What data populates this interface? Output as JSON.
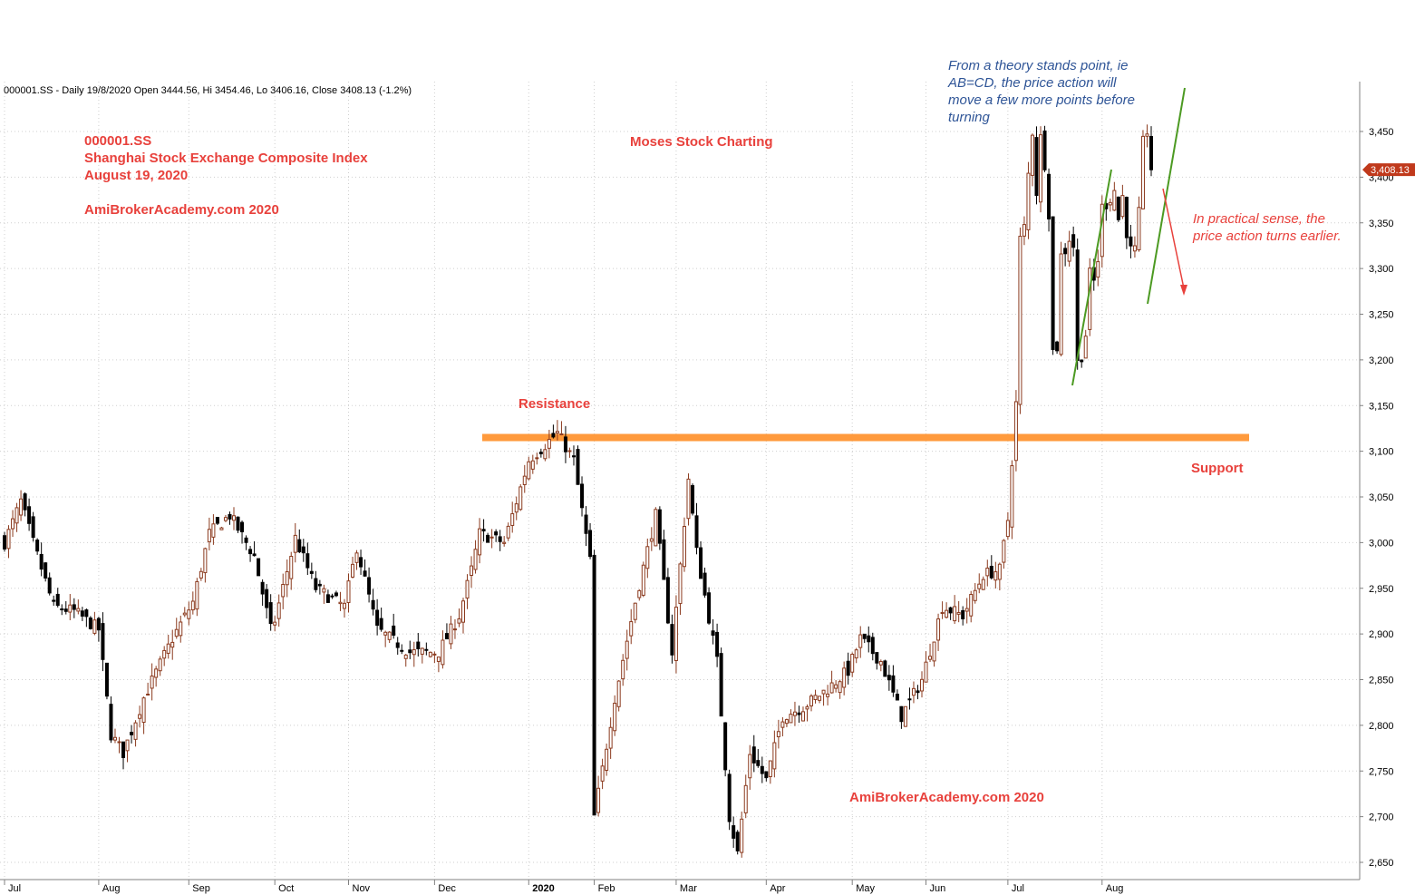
{
  "header": {
    "title": "000001.SS - Daily 19/8/2020 Open 3444.56, Hi 3454.46, Lo 3406.16, Close 3408.13 (-1.2%)"
  },
  "annotations": {
    "ticker": "000001.SS",
    "index_name": "Shanghai Stock Exchange Composite Index",
    "date": "August 19, 2020",
    "site_top": "AmiBrokerAcademy.com 2020",
    "brand": "Moses Stock Charting",
    "site_bottom": "AmiBrokerAcademy.com  2020",
    "resistance": "Resistance",
    "support": "Support",
    "theory_note": [
      "From a theory stands point, ie",
      "AB=CD, the price action will",
      "move a few more points before",
      "turning"
    ],
    "practical_note": [
      "In practical sense, the",
      "price action turns earlier."
    ]
  },
  "last_price_badge": "3,408.13",
  "colors": {
    "up_candle": "#8b3a1e",
    "down_candle": "#000000",
    "level_line": "#ff9a3c",
    "trend_green": "#4c9a22",
    "arrow_red": "#e8413c",
    "badge_fill": "#c0391b"
  },
  "chart_data": {
    "type": "candlestick",
    "y_ticks": [
      "3,450",
      "3,400",
      "3,350",
      "3,300",
      "3,250",
      "3,200",
      "3,150",
      "3,100",
      "3,050",
      "3,000",
      "2,950",
      "2,900",
      "2,850",
      "2,800",
      "2,750",
      "2,700",
      "2,650"
    ],
    "ylim": [
      2630,
      3470
    ],
    "x_ticks": [
      "Jul",
      "Aug",
      "Sep",
      "Oct",
      "Nov",
      "Dec",
      "2020",
      "Feb",
      "Mar",
      "Apr",
      "May",
      "Jun",
      "Jul",
      "Aug"
    ],
    "x_tick_dates": [
      "2019-07-01",
      "2019-08-01",
      "2019-09-02",
      "2019-10-08",
      "2019-11-01",
      "2019-12-02",
      "2020-01-02",
      "2020-02-03",
      "2020-03-02",
      "2020-04-01",
      "2020-05-06",
      "2020-06-01",
      "2020-07-01",
      "2020-08-03"
    ],
    "resistance_level": 3115,
    "support_level": 3115,
    "last_close": 3408.13,
    "anchors": [
      {
        "d": "2019-07-01",
        "c": 3000
      },
      {
        "d": "2019-07-05",
        "c": 3045
      },
      {
        "d": "2019-07-10",
        "c": 3000
      },
      {
        "d": "2019-07-17",
        "c": 2930
      },
      {
        "d": "2019-07-24",
        "c": 2925
      },
      {
        "d": "2019-08-01",
        "c": 2905
      },
      {
        "d": "2019-08-06",
        "c": 2790
      },
      {
        "d": "2019-08-09",
        "c": 2770
      },
      {
        "d": "2019-08-16",
        "c": 2830
      },
      {
        "d": "2019-08-27",
        "c": 2895
      },
      {
        "d": "2019-09-03",
        "c": 2935
      },
      {
        "d": "2019-09-09",
        "c": 3010
      },
      {
        "d": "2019-09-16",
        "c": 3030
      },
      {
        "d": "2019-09-24",
        "c": 2985
      },
      {
        "d": "2019-09-30",
        "c": 2905
      },
      {
        "d": "2019-10-08",
        "c": 2915
      },
      {
        "d": "2019-10-15",
        "c": 3005
      },
      {
        "d": "2019-10-22",
        "c": 2950
      },
      {
        "d": "2019-10-31",
        "c": 2930
      },
      {
        "d": "2019-11-05",
        "c": 2995
      },
      {
        "d": "2019-11-12",
        "c": 2905
      },
      {
        "d": "2019-11-22",
        "c": 2880
      },
      {
        "d": "2019-12-03",
        "c": 2880
      },
      {
        "d": "2019-12-10",
        "c": 2920
      },
      {
        "d": "2019-12-13",
        "c": 2970
      },
      {
        "d": "2019-12-17",
        "c": 3010
      },
      {
        "d": "2019-12-25",
        "c": 3000
      },
      {
        "d": "2020-01-02",
        "c": 3090
      },
      {
        "d": "2020-01-13",
        "c": 3120
      },
      {
        "d": "2020-01-17",
        "c": 3090
      },
      {
        "d": "2020-01-23",
        "c": 2980
      },
      {
        "d": "2020-02-03",
        "c": 2700
      },
      {
        "d": "2020-02-10",
        "c": 2830
      },
      {
        "d": "2020-02-17",
        "c": 2935
      },
      {
        "d": "2020-02-24",
        "c": 3030
      },
      {
        "d": "2020-02-28",
        "c": 2880
      },
      {
        "d": "2020-03-05",
        "c": 3070
      },
      {
        "d": "2020-03-09",
        "c": 2990
      },
      {
        "d": "2020-03-16",
        "c": 2870
      },
      {
        "d": "2020-03-19",
        "c": 2700
      },
      {
        "d": "2020-03-23",
        "c": 2660
      },
      {
        "d": "2020-03-26",
        "c": 2770
      },
      {
        "d": "2020-04-01",
        "c": 2740
      },
      {
        "d": "2020-04-08",
        "c": 2810
      },
      {
        "d": "2020-04-15",
        "c": 2820
      },
      {
        "d": "2020-04-23",
        "c": 2840
      },
      {
        "d": "2020-04-30",
        "c": 2860
      },
      {
        "d": "2020-05-08",
        "c": 2895
      },
      {
        "d": "2020-05-15",
        "c": 2870
      },
      {
        "d": "2020-05-22",
        "c": 2810
      },
      {
        "d": "2020-05-29",
        "c": 2850
      },
      {
        "d": "2020-06-05",
        "c": 2930
      },
      {
        "d": "2020-06-12",
        "c": 2920
      },
      {
        "d": "2020-06-19",
        "c": 2965
      },
      {
        "d": "2020-06-26",
        "c": 2970
      },
      {
        "d": "2020-07-01",
        "c": 3025
      },
      {
        "d": "2020-07-02",
        "c": 3090
      },
      {
        "d": "2020-07-03",
        "c": 3152
      },
      {
        "d": "2020-07-06",
        "c": 3332
      },
      {
        "d": "2020-07-07",
        "c": 3345
      },
      {
        "d": "2020-07-08",
        "c": 3403
      },
      {
        "d": "2020-07-09",
        "c": 3450
      },
      {
        "d": "2020-07-10",
        "c": 3384
      },
      {
        "d": "2020-07-13",
        "c": 3443
      },
      {
        "d": "2020-07-14",
        "c": 3415
      },
      {
        "d": "2020-07-15",
        "c": 3361
      },
      {
        "d": "2020-07-16",
        "c": 3210
      },
      {
        "d": "2020-07-17",
        "c": 3214
      },
      {
        "d": "2020-07-20",
        "c": 3314
      },
      {
        "d": "2020-07-21",
        "c": 3320
      },
      {
        "d": "2020-07-22",
        "c": 3333
      },
      {
        "d": "2020-07-23",
        "c": 3325
      },
      {
        "d": "2020-07-24",
        "c": 3197
      },
      {
        "d": "2020-07-27",
        "c": 3205
      },
      {
        "d": "2020-07-28",
        "c": 3228
      },
      {
        "d": "2020-07-29",
        "c": 3294
      },
      {
        "d": "2020-07-30",
        "c": 3286
      },
      {
        "d": "2020-07-31",
        "c": 3310
      },
      {
        "d": "2020-08-03",
        "c": 3367
      },
      {
        "d": "2020-08-04",
        "c": 3371
      },
      {
        "d": "2020-08-05",
        "c": 3377
      },
      {
        "d": "2020-08-06",
        "c": 3386
      },
      {
        "d": "2020-08-07",
        "c": 3354
      },
      {
        "d": "2020-08-10",
        "c": 3379
      },
      {
        "d": "2020-08-11",
        "c": 3340
      },
      {
        "d": "2020-08-12",
        "c": 3320
      },
      {
        "d": "2020-08-13",
        "c": 3320
      },
      {
        "d": "2020-08-14",
        "c": 3360
      },
      {
        "d": "2020-08-17",
        "c": 3438
      },
      {
        "d": "2020-08-18",
        "c": 3451
      },
      {
        "d": "2020-08-19",
        "c": 3408
      }
    ],
    "grid": true
  }
}
